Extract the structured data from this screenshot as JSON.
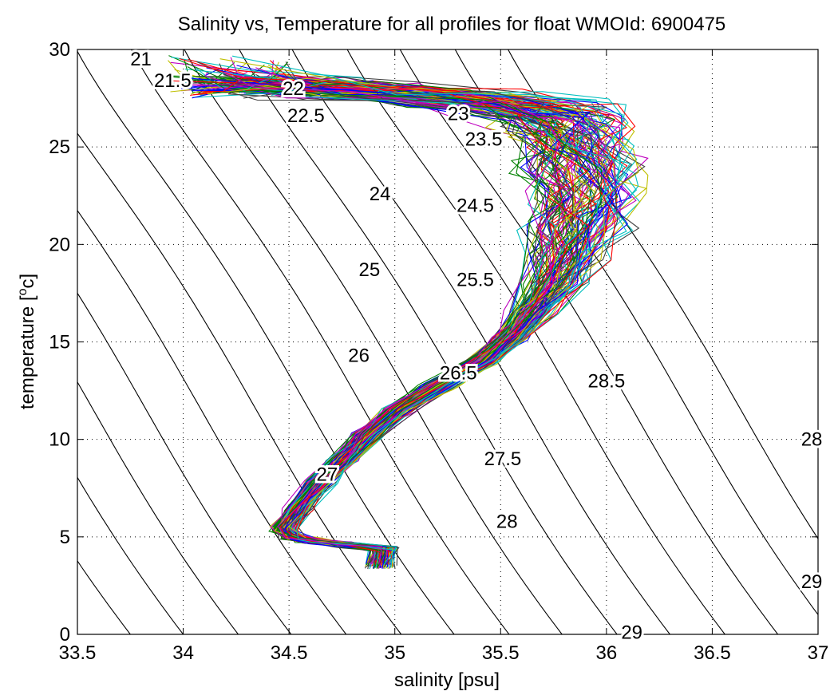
{
  "chart_data": {
    "type": "line",
    "title": "Salinity vs, Temperature for all profiles for float WMOId: 6900475",
    "xlabel": "salinity [psu]",
    "ylabel_main": "temperature [",
    "ylabel_sup": "o",
    "ylabel_end": "c]",
    "xlim": [
      33.5,
      37
    ],
    "ylim": [
      0,
      30
    ],
    "xticks": [
      "33.5",
      "34",
      "34.5",
      "35",
      "35.5",
      "36",
      "36.5",
      "37"
    ],
    "yticks": [
      "0",
      "5",
      "10",
      "15",
      "20",
      "25",
      "30"
    ],
    "grid": true,
    "colors": [
      "#0000ff",
      "#008000",
      "#ff0000",
      "#00bfbf",
      "#bf00bf",
      "#bfbf00",
      "#404040"
    ],
    "isopycnals": [
      {
        "label": "21",
        "x0": 33.24,
        "lx": 33.8,
        "ly": 29.5
      },
      {
        "label": "21.5",
        "x0": 33.49,
        "lx": 33.95,
        "ly": 28.4
      },
      {
        "label": "22",
        "x0": 33.75,
        "lx": 34.52,
        "ly": 28.0
      },
      {
        "label": "22.5",
        "x0": 34.0,
        "lx": 34.58,
        "ly": 26.6
      },
      {
        "label": "23",
        "x0": 34.26,
        "lx": 35.3,
        "ly": 26.7
      },
      {
        "label": "23.5",
        "x0": 34.51,
        "lx": 35.42,
        "ly": 25.4
      },
      {
        "label": "24",
        "x0": 34.77,
        "lx": 34.93,
        "ly": 22.6
      },
      {
        "label": "24.5",
        "x0": 35.03,
        "lx": 35.38,
        "ly": 22.0
      },
      {
        "label": "25",
        "x0": 35.28,
        "lx": 34.88,
        "ly": 18.7
      },
      {
        "label": "25.5",
        "x0": 35.54,
        "lx": 35.38,
        "ly": 18.2
      },
      {
        "label": "26",
        "x0": 35.79,
        "lx": 34.83,
        "ly": 14.3
      },
      {
        "label": "26.5",
        "x0": 36.05,
        "lx": 35.3,
        "ly": 13.4
      },
      {
        "label": "27",
        "x0": 36.3,
        "lx": 34.68,
        "ly": 8.2
      },
      {
        "label": "27.5",
        "x0": 36.56,
        "lx": 35.51,
        "ly": 9.0
      },
      {
        "label": "28",
        "x0": 36.81,
        "lx": 35.53,
        "ly": 5.8
      },
      {
        "label": "28.5",
        "x0": 37.07,
        "lx": 36.0,
        "ly": 13.0
      },
      {
        "label": "29",
        "x0": 37.32,
        "lx": 36.12,
        "ly": 0.1
      }
    ],
    "edge_labels": [
      {
        "label": "28",
        "lx": 36.97,
        "ly": 10.0
      },
      {
        "label": "29",
        "lx": 36.97,
        "ly": 2.7
      }
    ],
    "mean_profile": [
      {
        "x": 34.93,
        "y": 3.5
      },
      {
        "x": 34.95,
        "y": 4.4
      },
      {
        "x": 34.78,
        "y": 4.6
      },
      {
        "x": 34.6,
        "y": 4.8
      },
      {
        "x": 34.52,
        "y": 5.0
      },
      {
        "x": 34.48,
        "y": 5.4
      },
      {
        "x": 34.55,
        "y": 6.5
      },
      {
        "x": 34.65,
        "y": 7.8
      },
      {
        "x": 34.77,
        "y": 9.0
      },
      {
        "x": 34.88,
        "y": 10.2
      },
      {
        "x": 35.02,
        "y": 11.5
      },
      {
        "x": 35.2,
        "y": 12.7
      },
      {
        "x": 35.42,
        "y": 14.0
      },
      {
        "x": 35.55,
        "y": 15.2
      },
      {
        "x": 35.65,
        "y": 16.5
      },
      {
        "x": 35.75,
        "y": 18.0
      },
      {
        "x": 35.82,
        "y": 19.5
      },
      {
        "x": 35.87,
        "y": 21.0
      },
      {
        "x": 35.9,
        "y": 22.5
      },
      {
        "x": 35.88,
        "y": 24.0
      },
      {
        "x": 35.84,
        "y": 25.3
      },
      {
        "x": 35.78,
        "y": 26.3
      },
      {
        "x": 35.65,
        "y": 27.0
      },
      {
        "x": 35.3,
        "y": 27.5
      },
      {
        "x": 34.8,
        "y": 27.9
      },
      {
        "x": 34.4,
        "y": 28.2
      },
      {
        "x": 34.1,
        "y": 28.4
      }
    ]
  }
}
